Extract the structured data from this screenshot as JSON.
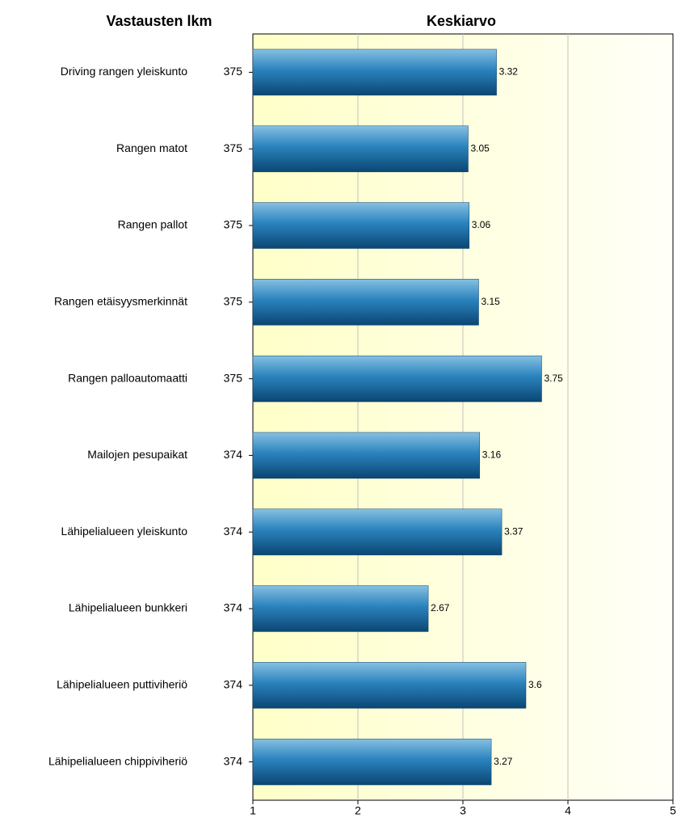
{
  "chart_data": {
    "type": "bar",
    "orientation": "horizontal",
    "title": "Keskiarvo",
    "count_title": "Vastausten lkm",
    "categories": [
      "Driving rangen yleiskunto",
      "Rangen matot",
      "Rangen pallot",
      "Rangen etäisyysmerkinnät",
      "Rangen palloautomaatti",
      "Mailojen pesupaikat",
      "Lähipelialueen yleiskunto",
      "Lähipelialueen bunkkeri",
      "Lähipelialueen puttiviheriö",
      "Lähipelialueen chippiviheriö"
    ],
    "values": [
      3.32,
      3.05,
      3.06,
      3.15,
      3.75,
      3.16,
      3.37,
      2.67,
      3.6,
      3.27
    ],
    "counts": [
      375,
      375,
      375,
      375,
      375,
      374,
      374,
      374,
      374,
      374
    ],
    "color": "#1a6fa3",
    "xlim": [
      1,
      5
    ],
    "xticks": [
      1,
      2,
      3,
      4,
      5
    ],
    "grid": true
  }
}
